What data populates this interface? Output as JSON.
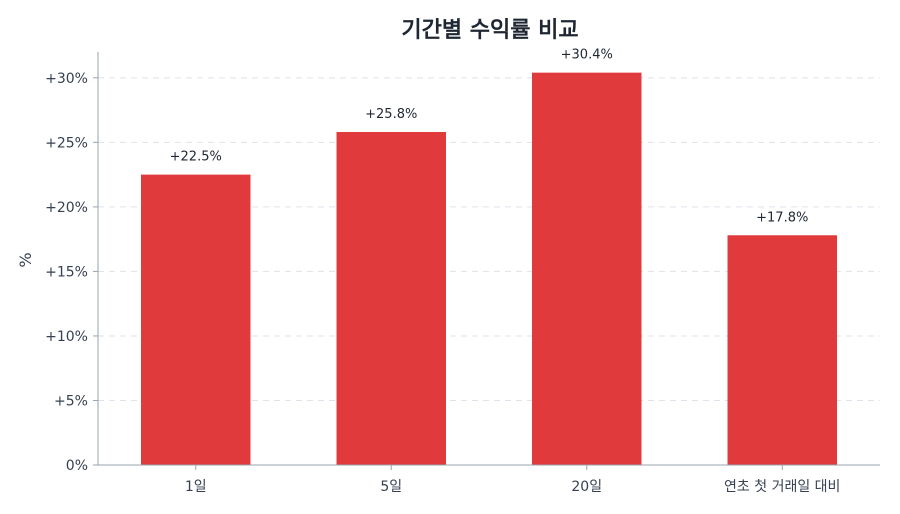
{
  "chart_data": {
    "type": "bar",
    "title": "기간별 수익률 비교",
    "ylabel": "%",
    "xlabel": "",
    "categories": [
      "1일",
      "5일",
      "20일",
      "연초 첫 거래일 대비"
    ],
    "values": [
      22.5,
      25.8,
      30.4,
      17.8
    ],
    "data_labels": [
      "+22.5%",
      "+25.8%",
      "+30.4%",
      "+17.8%"
    ],
    "ylim": [
      0,
      32
    ],
    "yticks": [
      0,
      5,
      10,
      15,
      20,
      25,
      30
    ],
    "ytick_labels": [
      "0%",
      "+5%",
      "+10%",
      "+15%",
      "+20%",
      "+25%",
      "+30%"
    ],
    "grid": true,
    "bar_color": "#e03a3c",
    "legend": "none"
  }
}
